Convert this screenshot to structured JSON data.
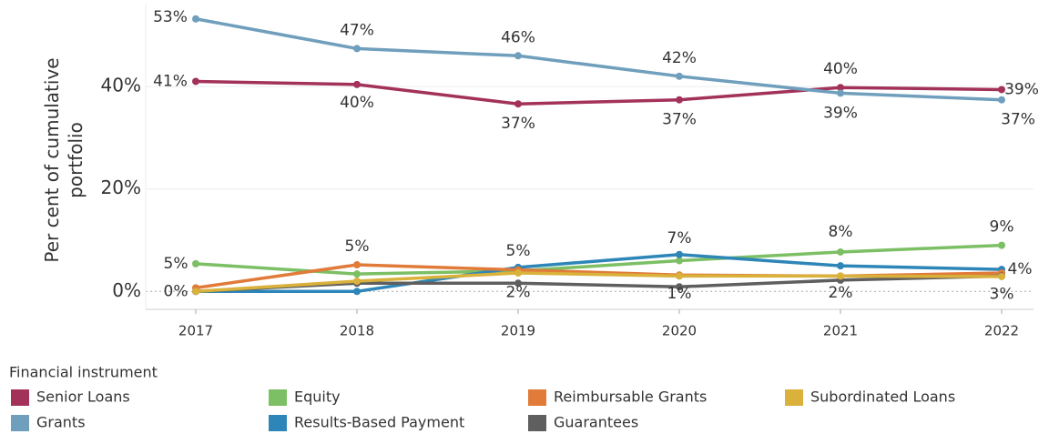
{
  "chart_data": {
    "type": "line",
    "y_label": "Per cent of cumulative portfolio",
    "legend_title": "Financial instrument",
    "categories": [
      "2017",
      "2018",
      "2019",
      "2020",
      "2021",
      "2022"
    ],
    "ylim": [
      -3.5,
      56
    ],
    "yticks": [
      {
        "value": 0,
        "label": "0%"
      },
      {
        "value": 20,
        "label": "20%"
      },
      {
        "value": 40,
        "label": "40%"
      }
    ],
    "grid": true,
    "series": [
      {
        "name": "Senior Loans",
        "color": "#a3325a",
        "values": [
          41,
          40.4,
          36.6,
          37.4,
          39.8,
          39.4
        ],
        "value_labels": [
          "41%",
          "40%",
          "37%",
          "37%",
          "40%",
          "39%"
        ]
      },
      {
        "name": "Grants",
        "color": "#6f9fbc",
        "values": [
          53.2,
          47.4,
          46,
          42,
          38.7,
          37.4
        ],
        "value_labels": [
          "53%",
          "47%",
          "46%",
          "42%",
          "39%",
          "37%"
        ]
      },
      {
        "name": "Equity",
        "color": "#7cbf64",
        "values": [
          5.4,
          3.4,
          4,
          6,
          7.7,
          9
        ],
        "value_labels": [
          "5%",
          null,
          null,
          null,
          "8%",
          "9%"
        ]
      },
      {
        "name": "Results-Based Payment",
        "color": "#2e86b8",
        "values": [
          0,
          0,
          4.7,
          7.2,
          5,
          4.3
        ],
        "value_labels": [
          null,
          null,
          "5%",
          "7%",
          null,
          "4%"
        ]
      },
      {
        "name": "Reimbursable Grants",
        "color": "#e07b39",
        "values": [
          0.7,
          5.2,
          4.2,
          3.2,
          3,
          3.6
        ],
        "value_labels": [
          null,
          "5%",
          null,
          null,
          null,
          null
        ]
      },
      {
        "name": "Guarantees",
        "color": "#5f5f5f",
        "values": [
          0,
          1.6,
          1.6,
          0.9,
          2.2,
          3
        ],
        "value_labels": [
          "0%",
          null,
          "2%",
          "1%",
          "2%",
          "3%"
        ]
      },
      {
        "name": "Subordinated Loans",
        "color": "#d9b13b",
        "values": [
          0,
          2,
          3.6,
          3,
          3,
          2.9
        ],
        "value_labels": [
          null,
          null,
          null,
          null,
          null,
          null
        ]
      }
    ]
  }
}
